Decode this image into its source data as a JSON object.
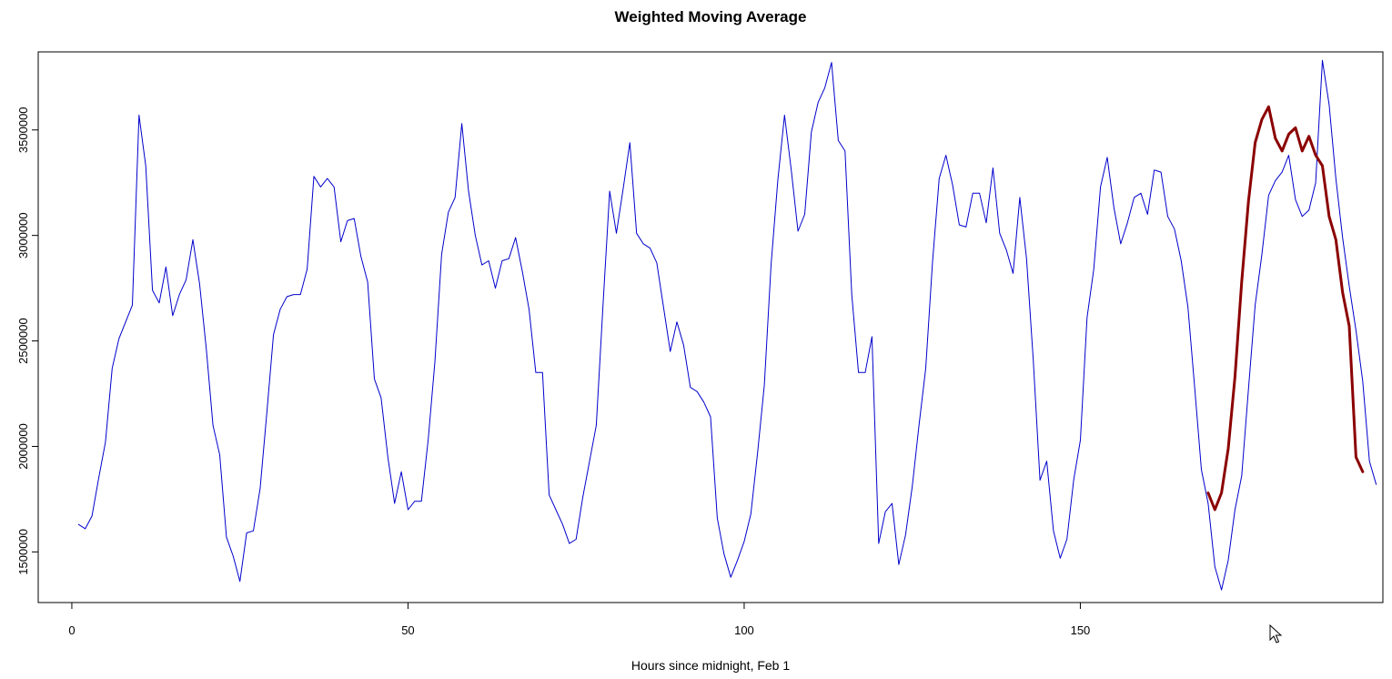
{
  "chart_data": {
    "type": "line",
    "title": "Weighted Moving Average",
    "xlabel": "Hours since midnight, Feb 1",
    "ylabel": "",
    "xlim": [
      -5,
      195
    ],
    "ylim": [
      1260000,
      3870000
    ],
    "x_ticks": [
      0,
      50,
      100,
      150
    ],
    "x_tick_labels": [
      "0",
      "50",
      "100",
      "150"
    ],
    "y_ticks": [
      1500000,
      2000000,
      2500000,
      3000000,
      3500000
    ],
    "y_tick_labels": [
      "1500000",
      "2000000",
      "2500000",
      "3000000",
      "3500000"
    ],
    "grid": false,
    "series": [
      {
        "color": "#0000cc",
        "line_width": 1,
        "x_start": 1,
        "values": [
          1630000,
          1610000,
          1670000,
          1850000,
          2020000,
          2370000,
          2510000,
          2590000,
          2670000,
          3570000,
          3330000,
          2740000,
          2680000,
          2850000,
          2620000,
          2720000,
          2790000,
          2980000,
          2770000,
          2460000,
          2100000,
          1960000,
          1570000,
          1480000,
          1360000,
          1590000,
          1600000,
          1800000,
          2160000,
          2530000,
          2650000,
          2710000,
          2720000,
          2720000,
          2840000,
          3280000,
          3230000,
          3270000,
          3230000,
          2970000,
          3070000,
          3080000,
          2900000,
          2780000,
          2320000,
          2230000,
          1950000,
          1730000,
          1880000,
          1700000,
          1740000,
          1740000,
          2030000,
          2400000,
          2910000,
          3110000,
          3180000,
          3530000,
          3210000,
          3000000,
          2860000,
          2880000,
          2750000,
          2880000,
          2890000,
          2990000,
          2830000,
          2650000,
          2350000,
          2350000,
          1770000,
          1700000,
          1630000,
          1540000,
          1560000,
          1760000,
          1930000,
          2100000,
          2670000,
          3210000,
          3010000,
          3220000,
          3440000,
          3010000,
          2960000,
          2940000,
          2870000,
          2660000,
          2450000,
          2590000,
          2480000,
          2280000,
          2260000,
          2210000,
          2140000,
          1660000,
          1490000,
          1380000,
          1460000,
          1550000,
          1680000,
          1970000,
          2290000,
          2860000,
          3260000,
          3570000,
          3310000,
          3020000,
          3100000,
          3490000,
          3630000,
          3700000,
          3820000,
          3450000,
          3400000,
          2720000,
          2350000,
          2350000,
          2520000,
          1540000,
          1690000,
          1730000,
          1440000,
          1580000,
          1810000,
          2100000,
          2370000,
          2870000,
          3270000,
          3380000,
          3240000,
          3050000,
          3040000,
          3200000,
          3200000,
          3060000,
          3320000,
          3010000,
          2930000,
          2820000,
          3180000,
          2890000,
          2410000,
          1840000,
          1930000,
          1600000,
          1470000,
          1560000,
          1840000,
          2030000,
          2610000,
          2840000,
          3230000,
          3370000,
          3130000,
          2960000,
          3060000,
          3180000,
          3200000,
          3100000,
          3310000,
          3300000,
          3090000,
          3030000,
          2880000,
          2660000,
          2280000,
          1890000,
          1730000,
          1430000,
          1320000,
          1460000,
          1700000,
          1860000,
          2270000,
          2670000,
          2910000,
          3190000,
          3260000,
          3300000,
          3380000,
          3170000,
          3090000,
          3120000,
          3250000,
          3830000,
          3620000,
          3270000,
          2990000,
          2760000,
          2550000,
          2310000,
          1930000,
          1820000
        ]
      },
      {
        "color": "#8b0000",
        "line_width": 3,
        "x_start": 169,
        "values": [
          1780000,
          1700000,
          1780000,
          1990000,
          2330000,
          2780000,
          3160000,
          3440000,
          3550000,
          3610000,
          3460000,
          3400000,
          3480000,
          3510000,
          3400000,
          3470000,
          3380000,
          3330000,
          3090000,
          2980000,
          2730000,
          2570000,
          1950000,
          1880000
        ]
      }
    ]
  }
}
